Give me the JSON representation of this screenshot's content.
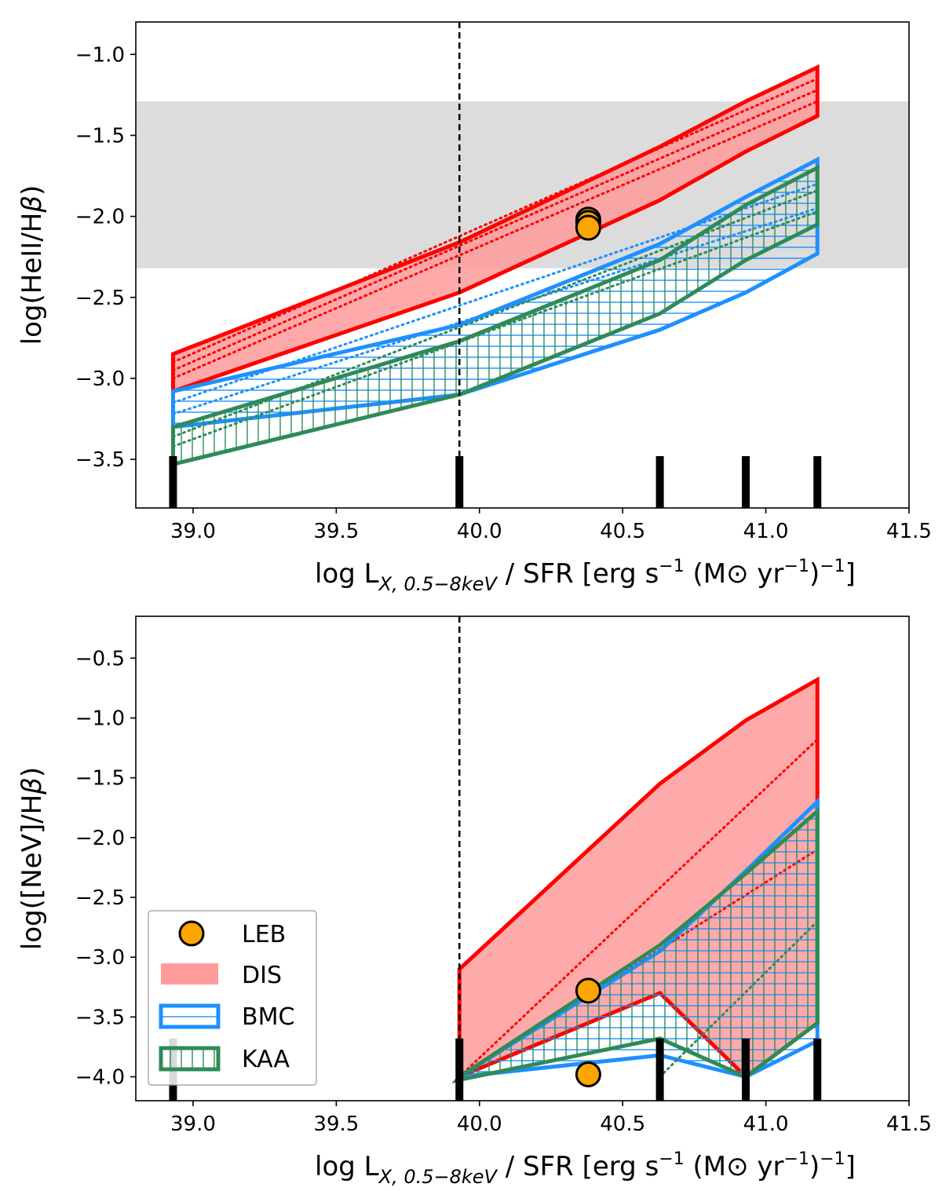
{
  "chart_data": [
    {
      "type": "area",
      "panel": "top",
      "xlabel_parts": {
        "pre": "log L",
        "sub": "X, 0.5−8keV",
        "mid1": " / SFR [erg s",
        "sup1": "−1",
        "mid2": " (M⊙ yr",
        "sup2": "−1",
        "mid3": ")",
        "sup3": "−1",
        "post": "]"
      },
      "ylabel_parts": {
        "pre": "log(HeII/H",
        "greek": "β",
        "post": ")"
      },
      "xlim": [
        38.8,
        41.5
      ],
      "ylim": [
        -3.8,
        -0.8
      ],
      "xticks": [
        39.0,
        39.5,
        40.0,
        40.5,
        41.0,
        41.5
      ],
      "xtick_labels": [
        "39.0",
        "39.5",
        "40.0",
        "40.5",
        "41.0",
        "41.5"
      ],
      "yticks": [
        -1.0,
        -1.5,
        -2.0,
        -2.5,
        -3.0,
        -3.5
      ],
      "ytick_labels": [
        "−1.0",
        "−1.5",
        "−2.0",
        "−2.5",
        "−3.0",
        "−3.5"
      ],
      "vline_x": 39.93,
      "observed_band": [
        -2.32,
        -1.29
      ],
      "rug_x": [
        38.93,
        39.93,
        40.63,
        40.93,
        41.18
      ],
      "rug_ymax": -3.48,
      "series": [
        {
          "name": "DIS",
          "upper": {
            "x": [
              38.93,
              39.93,
              40.63,
              40.93,
              41.18
            ],
            "y": [
              -2.85,
              -2.16,
              -1.57,
              -1.29,
              -1.08
            ]
          },
          "lower": {
            "x": [
              38.93,
              39.93,
              40.63,
              40.93,
              41.18
            ],
            "y": [
              -3.08,
              -2.47,
              -1.9,
              -1.6,
              -1.38
            ]
          },
          "inner": [
            {
              "x": [
                38.93,
                41.18
              ],
              "y": [
                -2.9,
                -1.15
              ]
            },
            {
              "x": [
                38.93,
                41.18
              ],
              "y": [
                -2.95,
                -1.22
              ]
            },
            {
              "x": [
                38.93,
                41.18
              ],
              "y": [
                -3.0,
                -1.29
              ]
            }
          ]
        },
        {
          "name": "BMC",
          "upper": {
            "x": [
              38.93,
              39.93,
              40.63,
              40.93,
              41.18
            ],
            "y": [
              -3.08,
              -2.67,
              -2.17,
              -1.88,
              -1.65
            ]
          },
          "lower": {
            "x": [
              38.93,
              39.93,
              40.63,
              40.93,
              41.18
            ],
            "y": [
              -3.3,
              -3.1,
              -2.7,
              -2.47,
              -2.23
            ]
          },
          "inner": [
            {
              "x": [
                38.93,
                41.18
              ],
              "y": [
                -3.15,
                -1.8
              ]
            },
            {
              "x": [
                38.93,
                41.18
              ],
              "y": [
                -3.22,
                -1.95
              ]
            }
          ]
        },
        {
          "name": "KAA",
          "upper": {
            "x": [
              38.93,
              39.93,
              40.63,
              40.93,
              41.18
            ],
            "y": [
              -3.3,
              -2.77,
              -2.27,
              -1.93,
              -1.7
            ]
          },
          "lower": {
            "x": [
              38.93,
              39.93,
              40.63,
              40.93,
              41.18
            ],
            "y": [
              -3.53,
              -3.1,
              -2.6,
              -2.27,
              -2.05
            ]
          },
          "inner": [
            {
              "x": [
                38.93,
                41.18
              ],
              "y": [
                -3.36,
                -1.84
              ]
            },
            {
              "x": [
                38.93,
                41.18
              ],
              "y": [
                -3.42,
                -1.97
              ]
            }
          ]
        }
      ],
      "points": {
        "name": "LEB",
        "x": [
          40.38,
          40.38,
          40.38
        ],
        "y": [
          -2.02,
          -2.04,
          -2.07
        ]
      }
    },
    {
      "type": "area",
      "panel": "bottom",
      "xlabel_parts": {
        "pre": "log L",
        "sub": "X, 0.5−8keV",
        "mid1": " / SFR [erg s",
        "sup1": "−1",
        "mid2": " (M⊙ yr",
        "sup2": "−1",
        "mid3": ")",
        "sup3": "−1",
        "post": "]"
      },
      "ylabel_parts": {
        "pre": "log([NeV]/H",
        "greek": "β",
        "post": ")"
      },
      "xlim": [
        38.8,
        41.5
      ],
      "ylim": [
        -4.2,
        -0.15
      ],
      "xticks": [
        39.0,
        39.5,
        40.0,
        40.5,
        41.0,
        41.5
      ],
      "xtick_labels": [
        "39.0",
        "39.5",
        "40.0",
        "40.5",
        "41.0",
        "41.5"
      ],
      "yticks": [
        -0.5,
        -1.0,
        -1.5,
        -2.0,
        -2.5,
        -3.0,
        -3.5,
        -4.0
      ],
      "ytick_labels": [
        "−0.5",
        "−1.0",
        "−1.5",
        "−2.0",
        "−2.5",
        "−3.0",
        "−3.5",
        "−4.0"
      ],
      "vline_x": 39.93,
      "rug_x": [
        38.93,
        39.93,
        40.63,
        40.93,
        41.18
      ],
      "rug_ymax": -3.68,
      "series": [
        {
          "name": "DIS",
          "upper": {
            "x": [
              39.93,
              40.63,
              40.93,
              41.18
            ],
            "y": [
              -3.1,
              -1.55,
              -1.02,
              -0.68
            ]
          },
          "lower": {
            "x": [
              39.93,
              40.63,
              40.93,
              41.18
            ],
            "y": [
              -4.0,
              -3.3,
              -4.0,
              -3.55
            ]
          },
          "inner": [
            {
              "x": [
                39.93,
                41.18
              ],
              "y": [
                -4.0,
                -1.18
              ]
            },
            {
              "x": [
                39.93,
                41.18
              ],
              "y": [
                -4.0,
                -2.1
              ]
            }
          ]
        },
        {
          "name": "BMC",
          "upper": {
            "x": [
              39.93,
              40.63,
              40.93,
              41.18
            ],
            "y": [
              -4.0,
              -2.95,
              -2.28,
              -1.7
            ]
          },
          "lower": {
            "x": [
              39.93,
              40.63,
              40.93,
              41.18
            ],
            "y": [
              -4.0,
              -3.82,
              -4.0,
              -3.7
            ]
          },
          "inner": []
        },
        {
          "name": "KAA",
          "upper": {
            "x": [
              39.93,
              40.63,
              40.93,
              41.18
            ],
            "y": [
              -4.0,
              -2.9,
              -2.3,
              -1.78
            ]
          },
          "lower": {
            "x": [
              39.92,
              40.63,
              40.93,
              41.18
            ],
            "y": [
              -4.03,
              -3.68,
              -4.0,
              -3.55
            ]
          },
          "inner": [
            {
              "x": [
                40.63,
                41.18
              ],
              "y": [
                -4.0,
                -2.7
              ]
            }
          ]
        }
      ],
      "points": {
        "name": "LEB",
        "x": [
          40.38,
          40.38
        ],
        "y": [
          -3.28,
          -3.98
        ]
      },
      "legend": {
        "placement": "lower-left",
        "entries": [
          "LEB",
          "DIS",
          "BMC",
          "KAA"
        ]
      }
    }
  ],
  "colors": {
    "DIS": "#ff0000",
    "DIS_fill": "#ff9b9b",
    "BMC": "#1e90ff",
    "KAA": "#2e8b57",
    "LEB": "#ffa500",
    "band": "#dcdcdc"
  }
}
